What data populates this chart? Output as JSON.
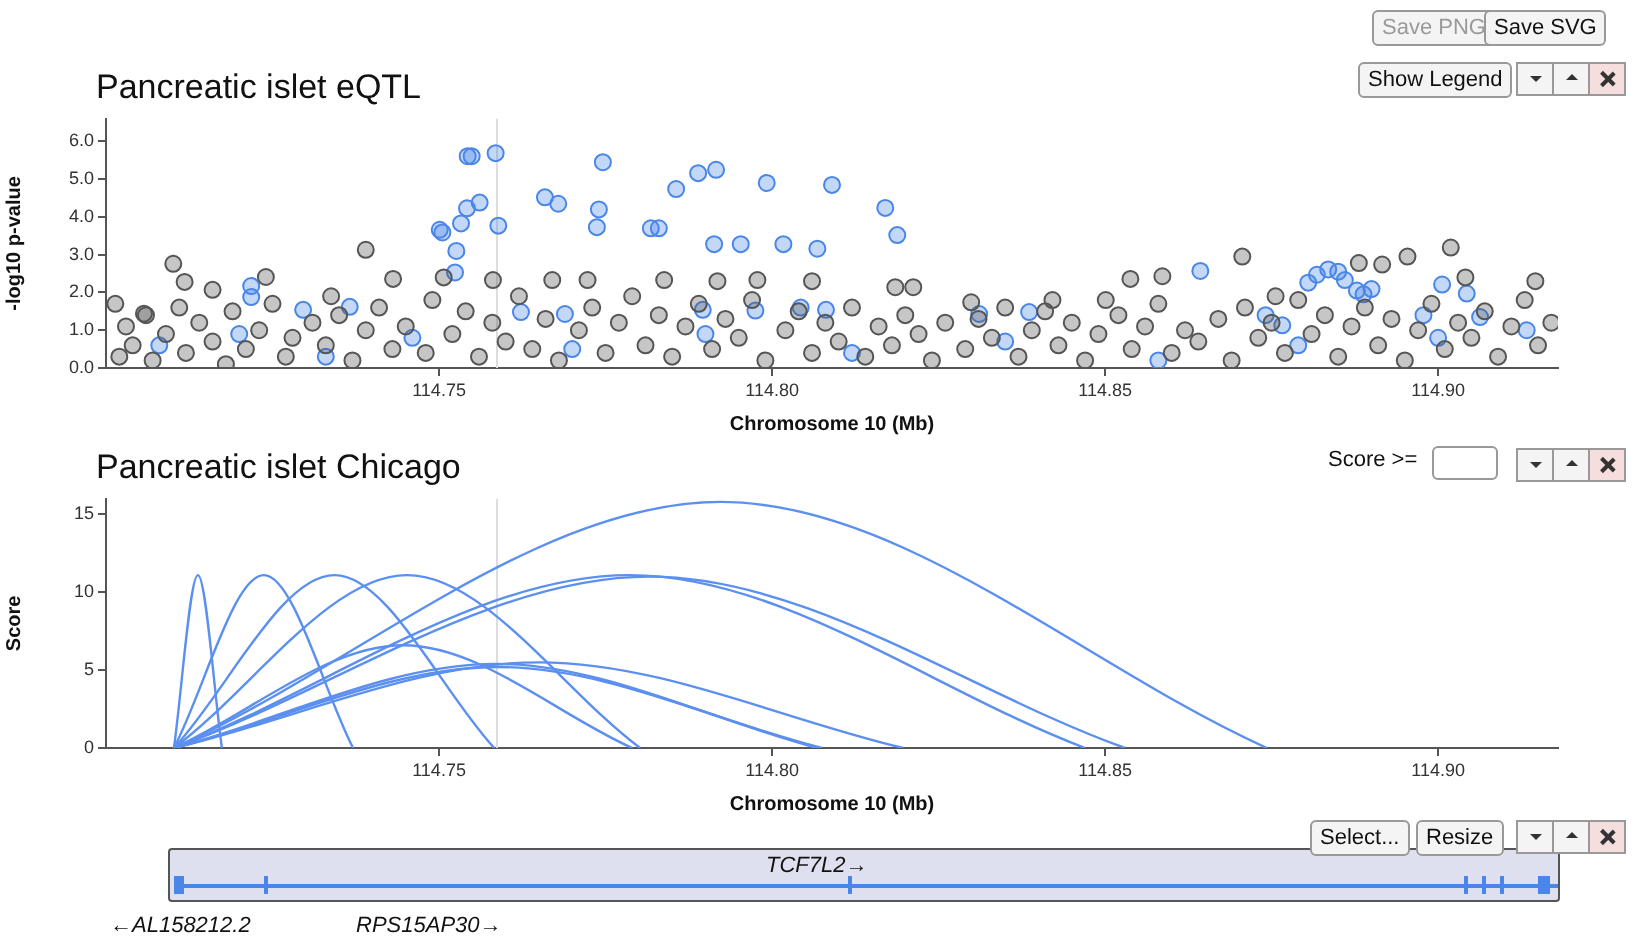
{
  "chart_data": [
    {
      "type": "scatter",
      "title": "Pancreatic islet eQTL",
      "xlabel": "Chromosome 10 (Mb)",
      "ylabel": "-log10 p-value",
      "marker": "circle",
      "xlim": [
        114.7,
        114.918
      ],
      "xticks": [
        {
          "value": 114.75,
          "label": "114.75"
        },
        {
          "value": 114.8,
          "label": "114.80"
        },
        {
          "value": 114.85,
          "label": "114.85"
        },
        {
          "value": 114.9,
          "label": "114.90"
        }
      ],
      "ylim": [
        0,
        6.6
      ],
      "yticks": [
        {
          "value": 0,
          "label": "0.0"
        },
        {
          "value": 1,
          "label": "1.0"
        },
        {
          "value": 2,
          "label": "2.0"
        },
        {
          "value": 3,
          "label": "3.0"
        },
        {
          "value": 4,
          "label": "4.0"
        },
        {
          "value": 5,
          "label": "5.0"
        },
        {
          "value": 6,
          "label": "6.0"
        }
      ],
      "ref_lines": [
        {
          "axis": "x",
          "value": 114.7587,
          "color": "#dddddd"
        }
      ],
      "annotations": [
        "Save PNG",
        "Save SVG",
        "Show Legend"
      ],
      "series": [
        {
          "color": "#555555",
          "x": [
            114.702,
            114.703,
            114.704,
            114.706,
            114.707,
            114.709,
            114.711,
            114.712,
            114.714,
            114.716,
            114.718,
            114.719,
            114.721,
            114.723,
            114.725,
            114.727,
            114.728,
            114.731,
            114.733,
            114.735,
            114.737,
            114.739,
            114.741,
            114.743,
            114.745,
            114.748,
            114.749,
            114.752,
            114.754,
            114.756,
            114.758,
            114.76,
            114.762,
            114.764,
            114.766,
            114.768,
            114.771,
            114.773,
            114.775,
            114.777,
            114.779,
            114.781,
            114.783,
            114.785,
            114.787,
            114.789,
            114.791,
            114.793,
            114.795,
            114.797,
            114.799,
            114.802,
            114.804,
            114.806,
            114.808,
            114.81,
            114.812,
            114.814,
            114.816,
            114.818,
            114.82,
            114.822,
            114.824,
            114.826,
            114.829,
            114.831,
            114.833,
            114.835,
            114.837,
            114.839,
            114.841,
            114.843,
            114.845,
            114.847,
            114.849,
            114.852,
            114.854,
            114.856,
            114.858,
            114.86,
            114.862,
            114.864,
            114.867,
            114.869,
            114.871,
            114.873,
            114.875,
            114.877,
            114.879,
            114.881,
            114.883,
            114.885,
            114.887,
            114.889,
            114.891,
            114.893,
            114.895,
            114.897,
            114.899,
            114.901,
            114.903,
            114.905,
            114.907,
            114.909,
            114.911,
            114.913,
            114.915,
            114.917,
            114.7101,
            114.739,
            114.724,
            114.716,
            114.7118,
            114.7431,
            114.7338,
            114.7014,
            114.7057,
            114.7507,
            114.7581,
            114.767,
            114.7723,
            114.7838,
            114.7918,
            114.7978,
            114.806,
            114.8185,
            114.8212,
            114.8299,
            114.8421,
            114.8501,
            114.8538,
            114.8586,
            114.8706,
            114.8756,
            114.8881,
            114.8916,
            114.8954,
            114.9019,
            114.9041,
            114.9146
          ],
          "values": [
            0.3,
            1.1,
            0.6,
            1.4,
            0.2,
            0.9,
            1.6,
            0.4,
            1.2,
            0.7,
            0.1,
            1.5,
            0.5,
            1,
            1.7,
            0.3,
            0.8,
            1.2,
            0.6,
            1.4,
            0.2,
            1,
            1.6,
            0.5,
            1.1,
            0.4,
            1.8,
            0.9,
            1.5,
            0.3,
            1.2,
            0.7,
            1.9,
            0.5,
            1.3,
            0.2,
            1,
            1.6,
            0.4,
            1.2,
            1.9,
            0.6,
            1.4,
            0.3,
            1.1,
            1.7,
            0.5,
            1.3,
            0.8,
            1.8,
            0.2,
            1,
            1.5,
            0.4,
            1.2,
            0.7,
            1.6,
            0.3,
            1.1,
            0.6,
            1.4,
            0.9,
            0.2,
            1.2,
            0.5,
            1.3,
            0.8,
            1.6,
            0.3,
            1,
            1.5,
            0.6,
            1.2,
            0.2,
            0.9,
            1.4,
            0.5,
            1.1,
            1.7,
            0.4,
            1,
            0.7,
            1.3,
            0.2,
            1.6,
            0.8,
            1.2,
            0.4,
            1.8,
            0.9,
            1.4,
            0.3,
            1.1,
            1.6,
            0.6,
            1.3,
            0.2,
            1,
            1.7,
            0.5,
            1.2,
            0.8,
            1.5,
            0.3,
            1.1,
            1.8,
            0.6,
            1.2,
            2.76,
            3.13,
            2.41,
            2.07,
            2.28,
            2.36,
            1.9,
            1.7,
            1.44,
            2.4,
            2.33,
            2.33,
            2.33,
            2.33,
            2.3,
            2.33,
            2.3,
            2.14,
            2.14,
            1.74,
            1.8,
            1.8,
            2.36,
            2.43,
            2.95,
            1.9,
            2.78,
            2.74,
            2.95,
            3.19,
            2.4,
            2.3
          ]
        },
        {
          "color": "#4a86e8",
          "x": [
            114.7543,
            114.7549,
            114.7585,
            114.7746,
            114.7856,
            114.7889,
            114.7916,
            114.7992,
            114.809,
            114.7659,
            114.7679,
            114.7561,
            114.7542,
            114.7533,
            114.7589,
            114.7501,
            114.7505,
            114.774,
            114.7737,
            114.7818,
            114.783,
            114.7913,
            114.7953,
            114.8017,
            114.8068,
            114.7526,
            114.7524,
            114.7218,
            114.7218,
            114.817,
            114.8188,
            114.8643,
            114.8805,
            114.8818,
            114.8835,
            114.885,
            114.886,
            114.8878,
            114.8888,
            114.89,
            114.9006,
            114.9043,
            114.7296,
            114.7366,
            114.7623,
            114.7689,
            114.7896,
            114.7975,
            114.8043,
            114.8081,
            114.8311,
            114.8386,
            114.8978,
            114.9063,
            114.9133,
            114.8741,
            114.8766,
            114.708,
            114.72,
            114.733,
            114.746,
            114.77,
            114.79,
            114.812,
            114.835,
            114.858,
            114.879,
            114.9
          ],
          "values": [
            5.61,
            5.61,
            5.69,
            5.45,
            4.74,
            5.16,
            5.25,
            4.9,
            4.85,
            4.52,
            4.35,
            4.38,
            4.23,
            3.83,
            3.77,
            3.66,
            3.59,
            4.2,
            3.73,
            3.7,
            3.7,
            3.28,
            3.28,
            3.28,
            3.16,
            3.1,
            2.53,
            2.17,
            1.88,
            4.24,
            3.52,
            2.57,
            2.26,
            2.47,
            2.61,
            2.55,
            2.33,
            2.05,
            1.95,
            2.09,
            2.21,
            1.97,
            1.54,
            1.62,
            1.48,
            1.43,
            1.54,
            1.52,
            1.6,
            1.54,
            1.43,
            1.48,
            1.4,
            1.35,
            1,
            1.4,
            1.13,
            0.6,
            0.9,
            0.3,
            0.8,
            0.5,
            0.9,
            0.4,
            0.7,
            0.2,
            0.6,
            0.8
          ]
        }
      ]
    },
    {
      "type": "line",
      "title": "Pancreatic islet Chicago",
      "xlabel": "Chromosome 10 (Mb)",
      "ylabel": "Score",
      "xlim": [
        114.7,
        114.918
      ],
      "xticks": [
        {
          "value": 114.75,
          "label": "114.75"
        },
        {
          "value": 114.8,
          "label": "114.80"
        },
        {
          "value": 114.85,
          "label": "114.85"
        },
        {
          "value": 114.9,
          "label": "114.90"
        }
      ],
      "ylim": [
        0,
        16
      ],
      "yticks": [
        0,
        5,
        10,
        15
      ],
      "ref_lines": [
        {
          "axis": "x",
          "value": 114.7587,
          "color": "#dddddd"
        }
      ],
      "annotations": [
        "Score >="
      ],
      "series": [
        {
          "color": "#5b8ff0",
          "x": [
            114.7102,
            114.7138,
            114.7174
          ],
          "values": [
            0,
            11.1,
            0
          ]
        },
        {
          "color": "#5b8ff0",
          "x": [
            114.7102,
            114.7237,
            114.7371
          ],
          "values": [
            0,
            11.1,
            0
          ]
        },
        {
          "color": "#5b8ff0",
          "x": [
            114.7102,
            114.7343,
            114.7583
          ],
          "values": [
            0,
            11.1,
            0
          ]
        },
        {
          "color": "#5b8ff0",
          "x": [
            114.7102,
            114.7452,
            114.7802
          ],
          "values": [
            0,
            11.1,
            0
          ]
        },
        {
          "color": "#5b8ff0",
          "x": [
            114.7102,
            114.7446,
            114.779
          ],
          "values": [
            0,
            6.6,
            0
          ]
        },
        {
          "color": "#5b8ff0",
          "x": [
            114.7102,
            114.7585,
            114.8068
          ],
          "values": [
            0,
            5.4,
            0
          ]
        },
        {
          "color": "#5b8ff0",
          "x": [
            114.7102,
            114.7589,
            114.8075
          ],
          "values": [
            0,
            5.2,
            0
          ]
        },
        {
          "color": "#5b8ff0",
          "x": [
            114.7102,
            114.765,
            114.8197
          ],
          "values": [
            0,
            5.5,
            0
          ]
        },
        {
          "color": "#5b8ff0",
          "x": [
            114.7102,
            114.7786,
            114.847
          ],
          "values": [
            0,
            11.1,
            0
          ]
        },
        {
          "color": "#5b8ff0",
          "x": [
            114.7102,
            114.7816,
            114.853
          ],
          "values": [
            0,
            11,
            0
          ]
        },
        {
          "color": "#5b8ff0",
          "x": [
            114.7102,
            114.7923,
            114.8743
          ],
          "values": [
            0,
            15.8,
            0
          ]
        }
      ]
    },
    {
      "type": "other",
      "annotations": [
        "TCF7L2→",
        "←AL158212.2",
        "RPS15AP30→",
        "Select...",
        "Resize"
      ]
    }
  ]
}
